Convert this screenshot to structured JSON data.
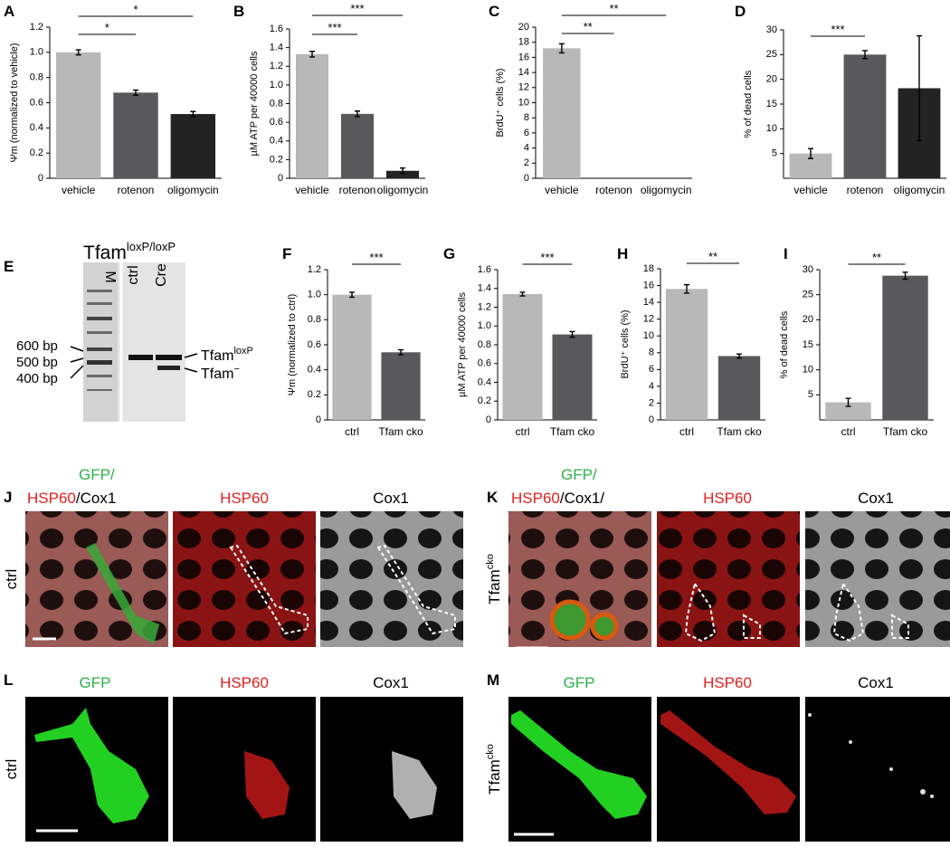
{
  "chart_data": [
    {
      "type": "bar",
      "panel": "A",
      "ylabel": "Ψm (normalized to vehicle)",
      "categories": [
        "vehicle",
        "rotenon",
        "oligomycin"
      ],
      "values": [
        1.0,
        0.68,
        0.51
      ],
      "errors": [
        0.02,
        0.02,
        0.02
      ],
      "colors": [
        "#b8b8b8",
        "#59595b",
        "#232323"
      ],
      "ylim": [
        0,
        1.2
      ],
      "yticks": [
        0,
        0.2,
        0.4,
        0.6,
        0.8,
        {
          "value": 1,
          "label": "1.0"
        },
        1.2
      ],
      "significance": [
        {
          "between": [
            "vehicle",
            "rotenon"
          ],
          "label": "*"
        },
        {
          "between": [
            "vehicle",
            "oligomycin"
          ],
          "label": "*"
        }
      ]
    },
    {
      "type": "bar",
      "panel": "B",
      "ylabel": "µM ATP per 40000 cells",
      "categories": [
        "vehicle",
        "rotenon",
        "oligomycin"
      ],
      "values": [
        1.33,
        0.69,
        0.08
      ],
      "errors": [
        0.03,
        0.03,
        0.03
      ],
      "colors": [
        "#b8b8b8",
        "#59595b",
        "#232323"
      ],
      "ylim": [
        0,
        1.6
      ],
      "yticks": [
        0,
        0.2,
        0.4,
        0.6,
        0.8,
        {
          "value": 1,
          "label": "1.0"
        },
        1.2,
        1.4,
        1.6
      ],
      "significance": [
        {
          "between": [
            "vehicle",
            "rotenon"
          ],
          "label": "***"
        },
        {
          "between": [
            "vehicle",
            "oligomycin"
          ],
          "label": "***"
        }
      ]
    },
    {
      "type": "bar",
      "panel": "C",
      "ylabel": "BrdU⁺ cells (%)",
      "categories": [
        "vehicle",
        "rotenon",
        "oligomycin"
      ],
      "values": [
        17.2,
        0,
        0
      ],
      "errors": [
        0.6,
        0,
        0
      ],
      "colors": [
        "#b8b8b8",
        "#59595b",
        "#232323"
      ],
      "ylim": [
        0,
        20
      ],
      "yticks": [
        0,
        2,
        4,
        6,
        8,
        10,
        12,
        14,
        16,
        18,
        20
      ],
      "significance": [
        {
          "between": [
            "vehicle",
            "rotenon"
          ],
          "label": "**"
        },
        {
          "between": [
            "vehicle",
            "oligomycin"
          ],
          "label": "**"
        }
      ]
    },
    {
      "type": "bar",
      "panel": "D",
      "ylabel": "% of dead cells",
      "categories": [
        "vehicle",
        "rotenon",
        "oligomycin"
      ],
      "values": [
        5.0,
        25.0,
        18.2
      ],
      "errors": [
        1.0,
        0.8,
        10.6
      ],
      "colors": [
        "#b8b8b8",
        "#59595b",
        "#232323"
      ],
      "ylim": [
        0,
        30
      ],
      "yticks": [
        5,
        10,
        15,
        20,
        25,
        30
      ],
      "significance": [
        {
          "between": [
            "vehicle",
            "rotenon"
          ],
          "label": "***"
        }
      ]
    },
    {
      "type": "bar",
      "panel": "F",
      "ylabel": "Ψm (normalized to ctrl)",
      "categories": [
        "ctrl",
        "Tfam cko"
      ],
      "values": [
        1.0,
        0.54
      ],
      "errors": [
        0.02,
        0.02
      ],
      "colors": [
        "#b8b8b8",
        "#59595b"
      ],
      "ylim": [
        0,
        1.2
      ],
      "yticks": [
        0,
        0.2,
        0.4,
        0.6,
        0.8,
        {
          "value": 1,
          "label": "1.0"
        },
        1.2
      ],
      "significance": [
        {
          "between": [
            "ctrl",
            "Tfam cko"
          ],
          "label": "***"
        }
      ]
    },
    {
      "type": "bar",
      "panel": "G",
      "ylabel": "µM ATP per 40000 cells",
      "categories": [
        "ctrl",
        "Tfam cko"
      ],
      "values": [
        1.34,
        0.91
      ],
      "errors": [
        0.02,
        0.03
      ],
      "colors": [
        "#b8b8b8",
        "#59595b"
      ],
      "ylim": [
        0,
        1.6
      ],
      "yticks": [
        0,
        0.2,
        0.4,
        0.6,
        0.8,
        {
          "value": 1,
          "label": "1.0"
        },
        1.2,
        1.4,
        1.6
      ],
      "significance": [
        {
          "between": [
            "ctrl",
            "Tfam cko"
          ],
          "label": "***"
        }
      ]
    },
    {
      "type": "bar",
      "panel": "H",
      "ylabel": "BrdU⁺ cells (%)",
      "categories": [
        "ctrl",
        "Tfam cko"
      ],
      "values": [
        15.6,
        7.6
      ],
      "errors": [
        0.5,
        0.25
      ],
      "colors": [
        "#b8b8b8",
        "#59595b"
      ],
      "ylim": [
        0,
        18
      ],
      "yticks": [
        0,
        2,
        4,
        6,
        8,
        10,
        12,
        14,
        16,
        18
      ],
      "significance": [
        {
          "between": [
            "ctrl",
            "Tfam cko"
          ],
          "label": "**"
        }
      ]
    },
    {
      "type": "bar",
      "panel": "I",
      "ylabel": "% of dead cells",
      "categories": [
        "ctrl",
        "Tfam cko"
      ],
      "values": [
        3.5,
        28.8
      ],
      "errors": [
        0.8,
        0.7
      ],
      "colors": [
        "#b8b8b8",
        "#59595b"
      ],
      "ylim": [
        0,
        30
      ],
      "yticks": [
        5,
        10,
        15,
        20,
        25,
        30
      ],
      "significance": [
        {
          "between": [
            "ctrl",
            "Tfam cko"
          ],
          "label": "**"
        }
      ]
    }
  ],
  "gel": {
    "panel": "E",
    "title": {
      "base": "Tfam",
      "sup": "loxP/loxP"
    },
    "lanes": [
      "M",
      "ctrl",
      "Cre"
    ],
    "sizes": [
      "600 bp",
      "500 bp",
      "400 bp"
    ],
    "bands": [
      {
        "base": "Tfam",
        "sup": "loxP"
      },
      {
        "base": "Tfam",
        "sup": "−"
      }
    ]
  },
  "images": {
    "J": {
      "panel": "J",
      "condition": "ctrl",
      "merge": [
        "GFP/",
        "HSP60",
        "/Cox1"
      ],
      "channels": [
        "HSP60",
        "Cox1"
      ]
    },
    "K": {
      "panel": "K",
      "condition": {
        "base": "Tfam",
        "sup": "cko"
      },
      "merge": [
        "GFP/",
        "HSP60",
        "/Cox1/"
      ],
      "channels": [
        "HSP60",
        "Cox1"
      ]
    },
    "L": {
      "panel": "L",
      "condition": "ctrl",
      "channels": [
        "GFP",
        "HSP60",
        "Cox1"
      ]
    },
    "M": {
      "panel": "M",
      "condition": {
        "base": "Tfam",
        "sup": "cko"
      },
      "channels": [
        "GFP",
        "HSP60",
        "Cox1"
      ]
    }
  }
}
